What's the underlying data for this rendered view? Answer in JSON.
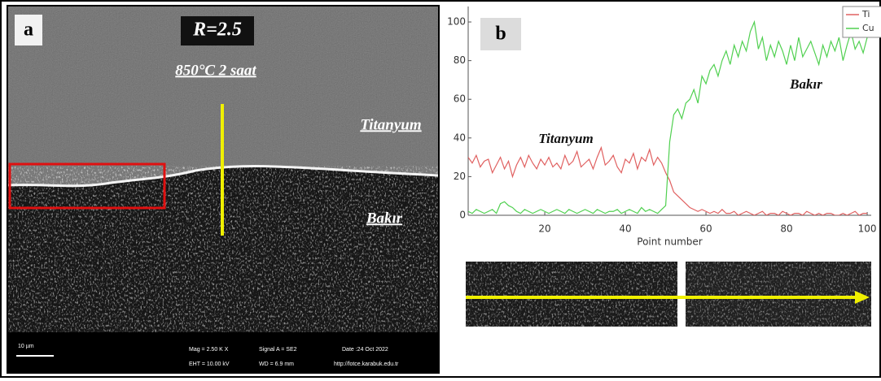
{
  "panel_a": {
    "label": "a",
    "ratio": "R=2.5",
    "condition": "850°C 2 saat",
    "top_region": "Titanyum",
    "bottom_region": "Bakır",
    "info_bar": {
      "scale": "10 µm",
      "mag": "Mag = 2.50 K X",
      "signal": "Signal A = SE2",
      "date": "Date :24 Oct 2022",
      "eht": "EHT = 10.00 kV",
      "wd": "WD = 6.9 mm",
      "url": "http://fotce.karabuk.edu.tr"
    }
  },
  "chart_data": {
    "type": "line",
    "panel_label": "b",
    "x_label": "Point number",
    "annotations": [
      "Titanyum",
      "Bakır"
    ],
    "x": [
      1,
      2,
      3,
      4,
      5,
      6,
      7,
      8,
      9,
      10,
      11,
      12,
      13,
      14,
      15,
      16,
      17,
      18,
      19,
      20,
      21,
      22,
      23,
      24,
      25,
      26,
      27,
      28,
      29,
      30,
      31,
      32,
      33,
      34,
      35,
      36,
      37,
      38,
      39,
      40,
      41,
      42,
      43,
      44,
      45,
      46,
      47,
      48,
      49,
      50,
      51,
      52,
      53,
      54,
      55,
      56,
      57,
      58,
      59,
      60,
      61,
      62,
      63,
      64,
      65,
      66,
      67,
      68,
      69,
      70,
      71,
      72,
      73,
      74,
      75,
      76,
      77,
      78,
      79,
      80,
      81,
      82,
      83,
      84,
      85,
      86,
      87,
      88,
      89,
      90,
      91,
      92,
      93,
      94,
      95,
      96,
      97,
      98,
      99,
      100
    ],
    "series": [
      {
        "name": "Ti",
        "color": "#e06060",
        "values": [
          30,
          27,
          31,
          25,
          28,
          29,
          22,
          26,
          30,
          24,
          28,
          20,
          26,
          30,
          25,
          31,
          27,
          24,
          29,
          26,
          30,
          25,
          27,
          24,
          31,
          26,
          28,
          33,
          25,
          27,
          29,
          24,
          30,
          35,
          26,
          28,
          31,
          25,
          22,
          29,
          27,
          32,
          24,
          30,
          28,
          34,
          26,
          30,
          27,
          22,
          18,
          12,
          10,
          8,
          6,
          4,
          3,
          2,
          3,
          2,
          1,
          2,
          1,
          3,
          1,
          1,
          2,
          0,
          1,
          2,
          1,
          0,
          1,
          2,
          0,
          1,
          1,
          0,
          2,
          1,
          0,
          1,
          1,
          0,
          2,
          1,
          0,
          1,
          0,
          1,
          1,
          0,
          0,
          1,
          0,
          1,
          2,
          0,
          1,
          1
        ]
      },
      {
        "name": "Cu",
        "color": "#50d050",
        "values": [
          2,
          1,
          3,
          2,
          1,
          2,
          3,
          1,
          6,
          7,
          5,
          4,
          2,
          1,
          3,
          2,
          1,
          2,
          3,
          2,
          1,
          2,
          3,
          2,
          1,
          3,
          2,
          1,
          2,
          3,
          2,
          1,
          3,
          2,
          1,
          2,
          2,
          3,
          1,
          2,
          3,
          2,
          1,
          4,
          2,
          3,
          2,
          1,
          3,
          5,
          38,
          52,
          55,
          50,
          58,
          60,
          65,
          58,
          72,
          68,
          75,
          78,
          72,
          80,
          85,
          78,
          88,
          82,
          90,
          85,
          95,
          100,
          86,
          92,
          80,
          88,
          82,
          90,
          85,
          78,
          88,
          80,
          92,
          82,
          86,
          90,
          84,
          78,
          88,
          82,
          90,
          85,
          92,
          80,
          88,
          95,
          86,
          90,
          84,
          92
        ]
      }
    ],
    "xlim": [
      1,
      101
    ],
    "ylim": [
      0,
      108
    ],
    "xticks": [
      20,
      40,
      60,
      80,
      100
    ],
    "yticks": [
      0,
      20,
      40,
      60,
      80,
      100
    ],
    "legend": "top-right"
  }
}
